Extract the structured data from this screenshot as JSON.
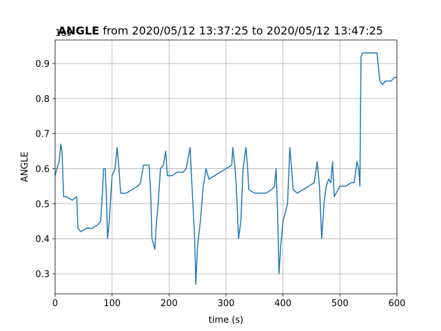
{
  "chart_data": {
    "type": "line",
    "title_bold": "ANGLE",
    "title": "from 2020/05/12 13:37:25 to 2020/05/12 13:47:25",
    "x_label": "time (s)",
    "y_label": "ANGLE",
    "y_offset_label": "1e9",
    "xlim": [
      0,
      600
    ],
    "xticks": [
      0,
      100,
      200,
      300,
      400,
      500,
      600
    ],
    "ylim": [
      0.243,
      0.967
    ],
    "yticks": [
      0.3,
      0.4,
      0.5,
      0.6,
      0.7,
      0.8,
      0.9
    ],
    "grid": true,
    "series": [
      {
        "name": "ANGLE",
        "color": "#1f77b4",
        "x": [
          0,
          3,
          7,
          10,
          12,
          15,
          20,
          30,
          38,
          40,
          45,
          55,
          65,
          75,
          80,
          82,
          85,
          88,
          90,
          92,
          95,
          100,
          105,
          109,
          112,
          115,
          125,
          135,
          145,
          150,
          155,
          160,
          165,
          168,
          170,
          175,
          178,
          180,
          185,
          190,
          194,
          197,
          205,
          215,
          225,
          230,
          237,
          240,
          245,
          247,
          250,
          255,
          260,
          265,
          270,
          280,
          290,
          300,
          310,
          312,
          316,
          318,
          322,
          326,
          330,
          335,
          338,
          340,
          350,
          360,
          370,
          380,
          385,
          388,
          391,
          393,
          396,
          400,
          405,
          408,
          412,
          415,
          418,
          425,
          435,
          445,
          455,
          460,
          464,
          468,
          472,
          476,
          480,
          484,
          487,
          490,
          500,
          510,
          520,
          525,
          530,
          533,
          535,
          537,
          540,
          550,
          560,
          565,
          570,
          575,
          580,
          585,
          590,
          595,
          600
        ],
        "values": [
          0.58,
          0.6,
          0.62,
          0.67,
          0.65,
          0.52,
          0.52,
          0.51,
          0.52,
          0.43,
          0.42,
          0.43,
          0.43,
          0.44,
          0.45,
          0.5,
          0.6,
          0.6,
          0.52,
          0.4,
          0.45,
          0.58,
          0.6,
          0.66,
          0.6,
          0.53,
          0.53,
          0.54,
          0.55,
          0.56,
          0.61,
          0.61,
          0.61,
          0.52,
          0.4,
          0.37,
          0.45,
          0.48,
          0.6,
          0.61,
          0.65,
          0.58,
          0.58,
          0.59,
          0.59,
          0.6,
          0.66,
          0.56,
          0.4,
          0.27,
          0.38,
          0.45,
          0.55,
          0.6,
          0.57,
          0.58,
          0.59,
          0.6,
          0.61,
          0.66,
          0.6,
          0.55,
          0.4,
          0.45,
          0.6,
          0.66,
          0.6,
          0.54,
          0.53,
          0.53,
          0.53,
          0.54,
          0.55,
          0.6,
          0.45,
          0.3,
          0.38,
          0.45,
          0.48,
          0.5,
          0.66,
          0.6,
          0.54,
          0.53,
          0.54,
          0.55,
          0.56,
          0.62,
          0.55,
          0.4,
          0.5,
          0.55,
          0.57,
          0.56,
          0.62,
          0.52,
          0.55,
          0.55,
          0.56,
          0.56,
          0.62,
          0.6,
          0.55,
          0.92,
          0.93,
          0.93,
          0.93,
          0.93,
          0.85,
          0.84,
          0.85,
          0.85,
          0.85,
          0.86,
          0.86
        ]
      }
    ]
  }
}
